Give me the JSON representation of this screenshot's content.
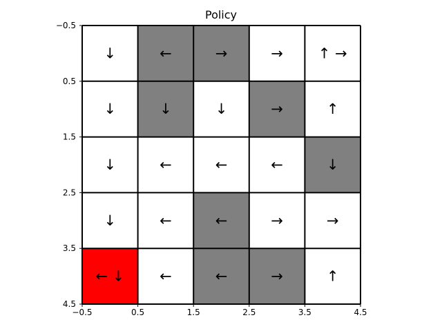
{
  "chart_data": {
    "type": "heatmap",
    "title": "Policy",
    "xlim": [
      -0.5,
      4.5
    ],
    "ylim": [
      4.5,
      -0.5
    ],
    "x_ticks": [
      -0.5,
      0.5,
      1.5,
      2.5,
      3.5,
      4.5
    ],
    "y_ticks": [
      -0.5,
      0.5,
      1.5,
      2.5,
      3.5,
      4.5
    ],
    "x_tick_labels": [
      "−0.5",
      "0.5",
      "1.5",
      "2.5",
      "3.5",
      "4.5"
    ],
    "y_tick_labels": [
      "−0.5",
      "0.5",
      "1.5",
      "2.5",
      "3.5",
      "4.5"
    ],
    "grid": true,
    "colors": {
      "free": "#ffffff",
      "wall": "#808080",
      "goal": "#ff0000",
      "grid_line": "#000000"
    },
    "cell_types": [
      [
        "free",
        "wall",
        "wall",
        "free",
        "free"
      ],
      [
        "free",
        "wall",
        "free",
        "wall",
        "free"
      ],
      [
        "free",
        "free",
        "free",
        "free",
        "wall"
      ],
      [
        "free",
        "free",
        "wall",
        "free",
        "free"
      ],
      [
        "goal",
        "free",
        "wall",
        "wall",
        "free"
      ]
    ],
    "arrows": [
      [
        "↓",
        "←",
        "→",
        "→",
        "↑ →"
      ],
      [
        "↓",
        "↓",
        "↓",
        "→",
        "↑"
      ],
      [
        "↓",
        "←",
        "←",
        "←",
        "↓"
      ],
      [
        "↓",
        "←",
        "←",
        "→",
        "→"
      ],
      [
        "← ↓",
        "←",
        "←",
        "→",
        "↑"
      ]
    ]
  }
}
